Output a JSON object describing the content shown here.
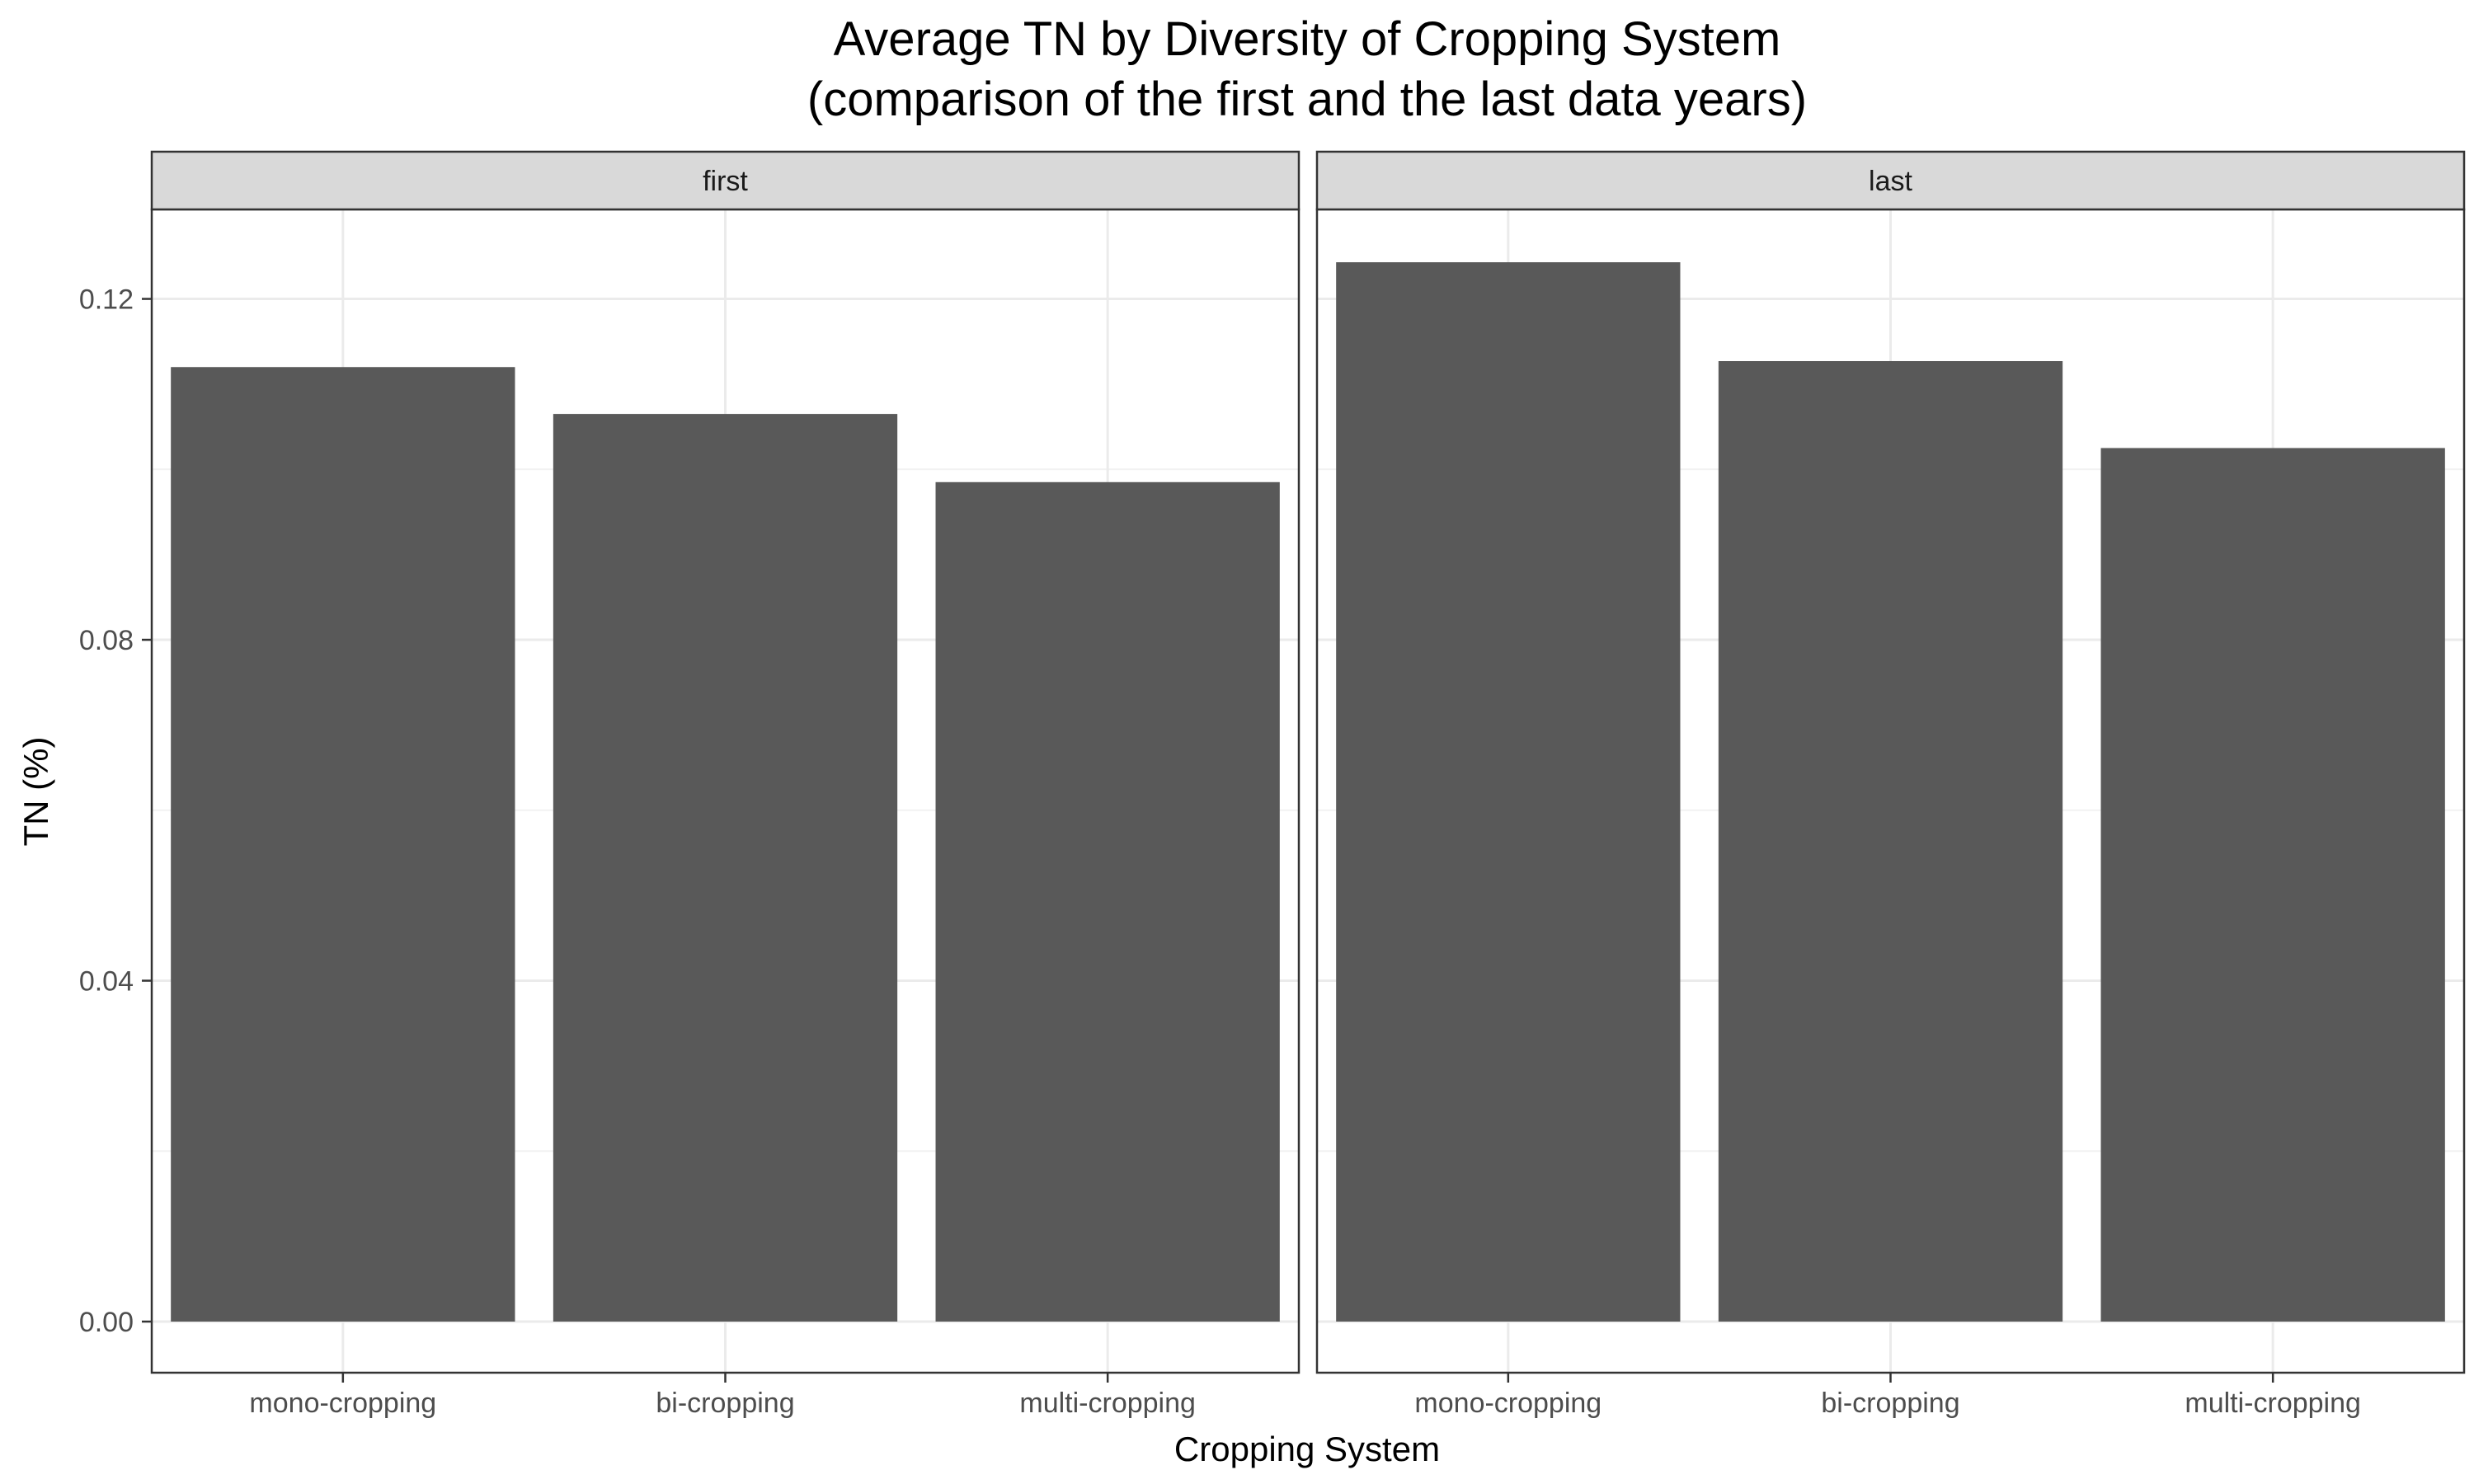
{
  "chart_data": {
    "type": "bar",
    "title": "Average TN by Diversity of Cropping System",
    "subtitle": "(comparison of the first and the last data years)",
    "xlabel": "Cropping System",
    "ylabel": "TN (%)",
    "ylim": [
      0,
      0.1305
    ],
    "yticks": [
      "0.00",
      "0.04",
      "0.08",
      "0.12"
    ],
    "ytick_values": [
      0,
      0.04,
      0.08,
      0.12
    ],
    "grid": true,
    "bar_color": "#595959",
    "categories": [
      "mono-cropping",
      "bi-cropping",
      "multi-cropping"
    ],
    "panels": [
      {
        "label": "first",
        "values": [
          0.112,
          0.1065,
          0.0985
        ]
      },
      {
        "label": "last",
        "values": [
          0.1243,
          0.1127,
          0.1025
        ]
      }
    ]
  }
}
